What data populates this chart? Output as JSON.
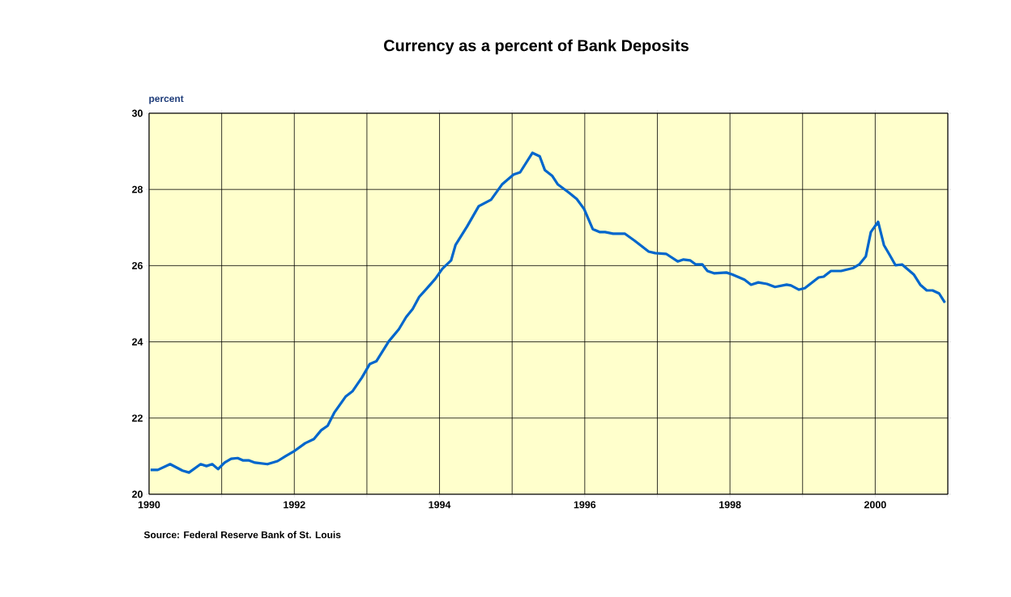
{
  "chart_data": {
    "type": "line",
    "title": "Currency as a percent of Bank Deposits",
    "ylabel": "percent",
    "annotations": [
      "Source: Federal Reserve Bank of St. Louis"
    ],
    "xlim": [
      1990,
      2001
    ],
    "ylim": [
      20,
      30
    ],
    "xticks": [
      1990,
      {
        "value": 1991,
        "label": null
      },
      1992,
      {
        "value": 1993,
        "label": null
      },
      1994,
      {
        "value": 1995,
        "label": null
      },
      1996,
      {
        "value": 1997,
        "label": null
      },
      1998,
      {
        "value": 1999,
        "label": null
      },
      2000,
      {
        "value": 2001,
        "label": null
      }
    ],
    "yticks": [
      20,
      22,
      24,
      26,
      28,
      30
    ],
    "grid": true,
    "marker": "none",
    "line_style": "solid",
    "series": [
      {
        "color": "#0066cc",
        "x": [
          1990.02,
          1990.12,
          1990.29,
          1990.38,
          1990.46,
          1990.55,
          1990.71,
          1990.79,
          1990.87,
          1990.95,
          1991.04,
          1991.13,
          1991.22,
          1991.29,
          1991.37,
          1991.46,
          1991.63,
          1991.77,
          1991.88,
          1991.99,
          1992.15,
          1992.27,
          1992.37,
          1992.46,
          1992.55,
          1992.71,
          1992.8,
          1992.93,
          1993.04,
          1993.13,
          1993.3,
          1993.44,
          1993.54,
          1993.63,
          1993.72,
          1993.82,
          1993.94,
          1994.04,
          1994.16,
          1994.22,
          1994.38,
          1994.54,
          1994.71,
          1994.86,
          1995.02,
          1995.11,
          1995.28,
          1995.38,
          1995.45,
          1995.55,
          1995.63,
          1995.78,
          1995.89,
          1995.99,
          1996.11,
          1996.21,
          1996.28,
          1996.39,
          1996.55,
          1996.69,
          1996.88,
          1996.97,
          1997.12,
          1997.28,
          1997.36,
          1997.45,
          1997.53,
          1997.62,
          1997.69,
          1997.78,
          1997.95,
          1998.03,
          1998.2,
          1998.29,
          1998.39,
          1998.51,
          1998.62,
          1998.78,
          1998.84,
          1998.95,
          1999.03,
          1999.22,
          1999.29,
          1999.39,
          1999.53,
          1999.7,
          1999.78,
          1999.87,
          1999.94,
          2000.04,
          2000.12,
          2000.2,
          2000.28,
          2000.37,
          2000.53,
          2000.62,
          2000.71,
          2000.79,
          2000.88,
          2000.96
        ],
        "values": [
          20.64,
          20.64,
          20.79,
          20.7,
          20.62,
          20.57,
          20.79,
          20.74,
          20.79,
          20.66,
          20.83,
          20.93,
          20.95,
          20.89,
          20.89,
          20.83,
          20.79,
          20.87,
          21.0,
          21.12,
          21.34,
          21.45,
          21.68,
          21.8,
          22.14,
          22.57,
          22.7,
          23.06,
          23.42,
          23.49,
          24.01,
          24.33,
          24.65,
          24.86,
          25.18,
          25.39,
          25.65,
          25.92,
          26.14,
          26.54,
          27.03,
          27.56,
          27.73,
          28.13,
          28.39,
          28.45,
          28.96,
          28.87,
          28.51,
          28.36,
          28.13,
          27.92,
          27.75,
          27.49,
          26.96,
          26.88,
          26.88,
          26.84,
          26.84,
          26.65,
          26.37,
          26.33,
          26.31,
          26.11,
          26.16,
          26.14,
          26.03,
          26.03,
          25.86,
          25.8,
          25.82,
          25.77,
          25.63,
          25.5,
          25.56,
          25.52,
          25.44,
          25.5,
          25.48,
          25.37,
          25.41,
          25.69,
          25.71,
          25.86,
          25.86,
          25.94,
          26.03,
          26.24,
          26.88,
          27.15,
          26.54,
          26.28,
          26.01,
          26.03,
          25.77,
          25.5,
          25.35,
          25.35,
          25.27,
          25.03
        ]
      }
    ]
  }
}
